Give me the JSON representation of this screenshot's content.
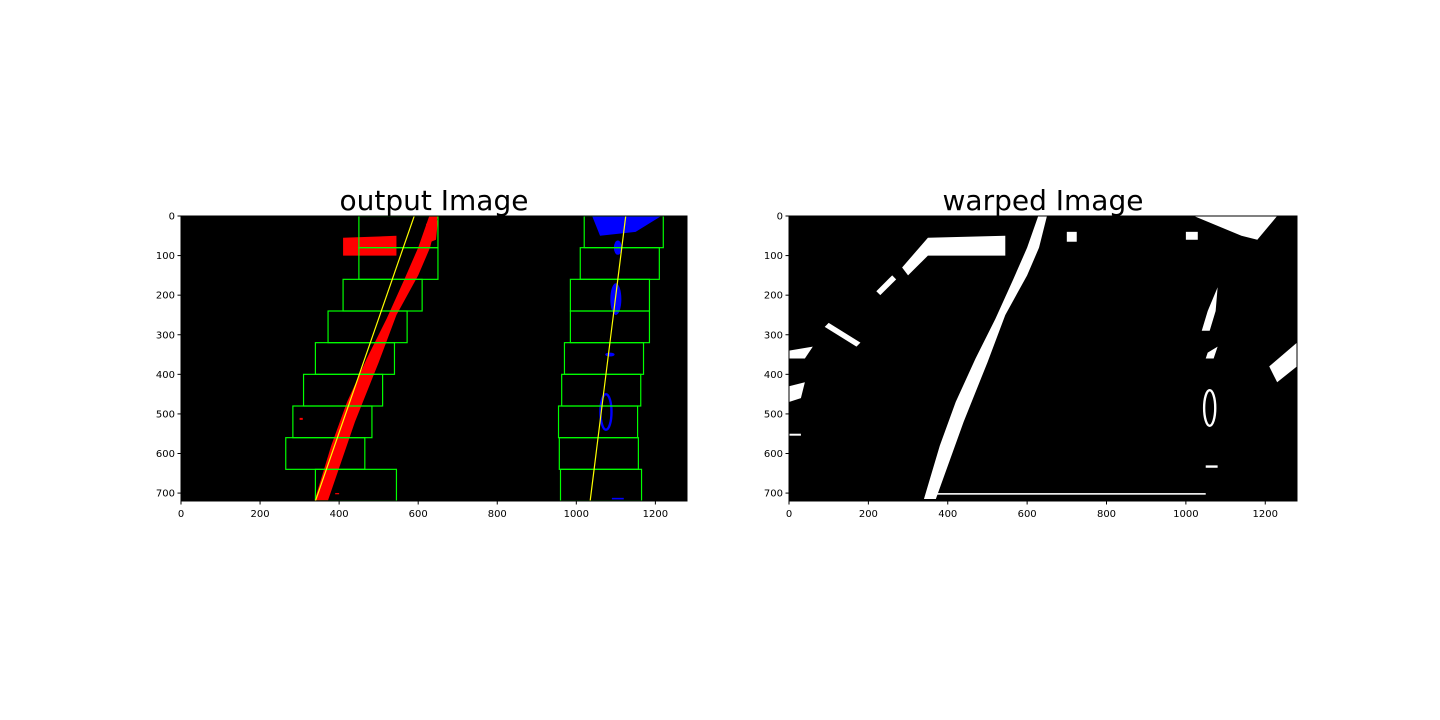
{
  "chart_data": [
    {
      "type": "image",
      "title": "output Image",
      "xlim": [
        0,
        1280
      ],
      "ylim": [
        720,
        0
      ],
      "xticks": [
        0,
        200,
        400,
        600,
        800,
        1000,
        1200
      ],
      "yticks": [
        0,
        100,
        200,
        300,
        400,
        500,
        600,
        700
      ]
    },
    {
      "type": "image",
      "title": "warped Image",
      "xlim": [
        0,
        1280
      ],
      "ylim": [
        720,
        0
      ],
      "xticks": [
        0,
        200,
        400,
        600,
        800,
        1000,
        1200
      ],
      "yticks": [
        0,
        100,
        200,
        300,
        400,
        500,
        600,
        700
      ]
    }
  ]
}
